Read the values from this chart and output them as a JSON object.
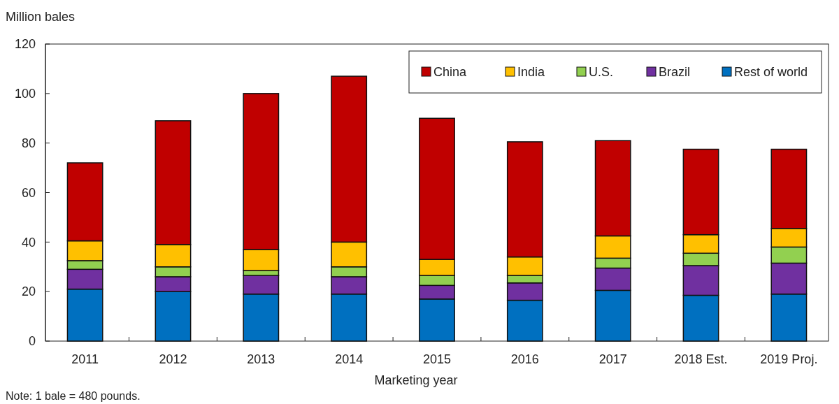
{
  "chart_data": {
    "type": "bar",
    "stacked": true,
    "ylabel": "Million bales",
    "xlabel": "Marketing year",
    "categories": [
      "2011",
      "2012",
      "2013",
      "2014",
      "2015",
      "2016",
      "2017",
      "2018 Est.",
      "2019 Proj."
    ],
    "series": [
      {
        "name": "Rest of world",
        "color": "#0070c0",
        "values": [
          21,
          20,
          19,
          19,
          17,
          16.5,
          20.5,
          18.5,
          19
        ]
      },
      {
        "name": "Brazil",
        "color": "#7030a0",
        "values": [
          8,
          6,
          7.5,
          7,
          5.5,
          7,
          9,
          12,
          12.5
        ]
      },
      {
        "name": "U.S.",
        "color": "#92d050",
        "values": [
          3.5,
          4,
          2,
          4,
          4,
          3,
          4,
          5,
          6.5
        ]
      },
      {
        "name": "India",
        "color": "#ffc000",
        "values": [
          8,
          9,
          8.5,
          10,
          6.5,
          7.5,
          9,
          7.5,
          7.5
        ]
      },
      {
        "name": "China",
        "color": "#c00000",
        "values": [
          31.5,
          50,
          63,
          67,
          57,
          46.5,
          38.5,
          34.5,
          32
        ]
      }
    ],
    "ylim": [
      0,
      120
    ],
    "yticks": [
      0,
      20,
      40,
      60,
      80,
      100,
      120
    ],
    "grid": false,
    "legend": "top right",
    "annotations": [
      "Note: 1 bale = 480 pounds."
    ]
  }
}
